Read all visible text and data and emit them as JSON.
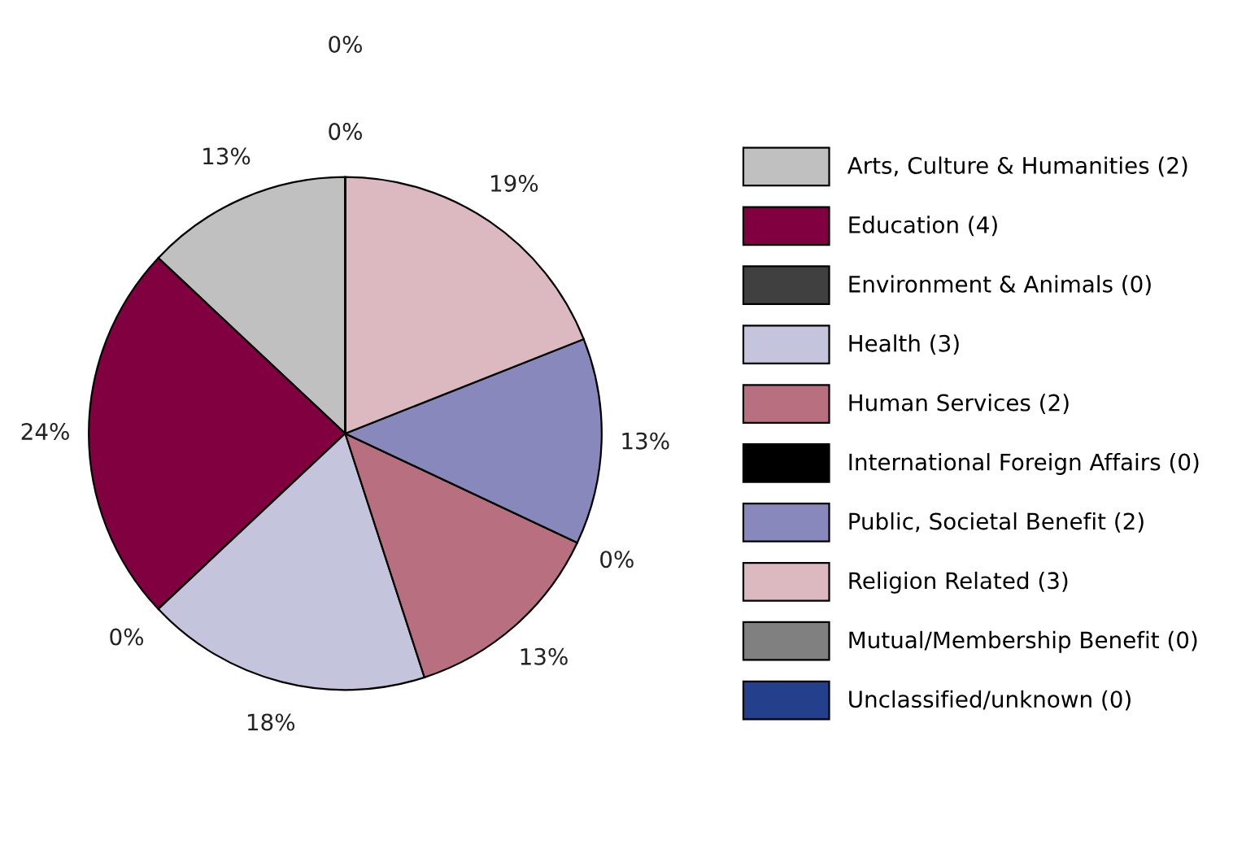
{
  "chart_data": {
    "type": "pie",
    "categories": [
      "Arts, Culture & Humanities (2)",
      "Education (4)",
      "Environment & Animals (0)",
      "Health (3)",
      "Human Services (2)",
      "International Foreign Affairs (0)",
      "Public, Societal Benefit (2)",
      "Religion Related (3)",
      "Mutual/Membership Benefit (0)",
      "Unclassified/unknown (0)"
    ],
    "values": [
      13,
      24,
      0,
      18,
      13,
      0,
      13,
      19,
      0,
      0
    ],
    "colors": [
      "#c0c0c0",
      "#800040",
      "#404040",
      "#c4c4dc",
      "#b87080",
      "#000000",
      "#8888bc",
      "#dcb8c0",
      "#808080",
      "#24408c"
    ],
    "value_labels": [
      "13%",
      "24%",
      "0%",
      "18%",
      "13%",
      "0%",
      "13%",
      "19%",
      "0%",
      "0%"
    ],
    "legend": "right"
  }
}
